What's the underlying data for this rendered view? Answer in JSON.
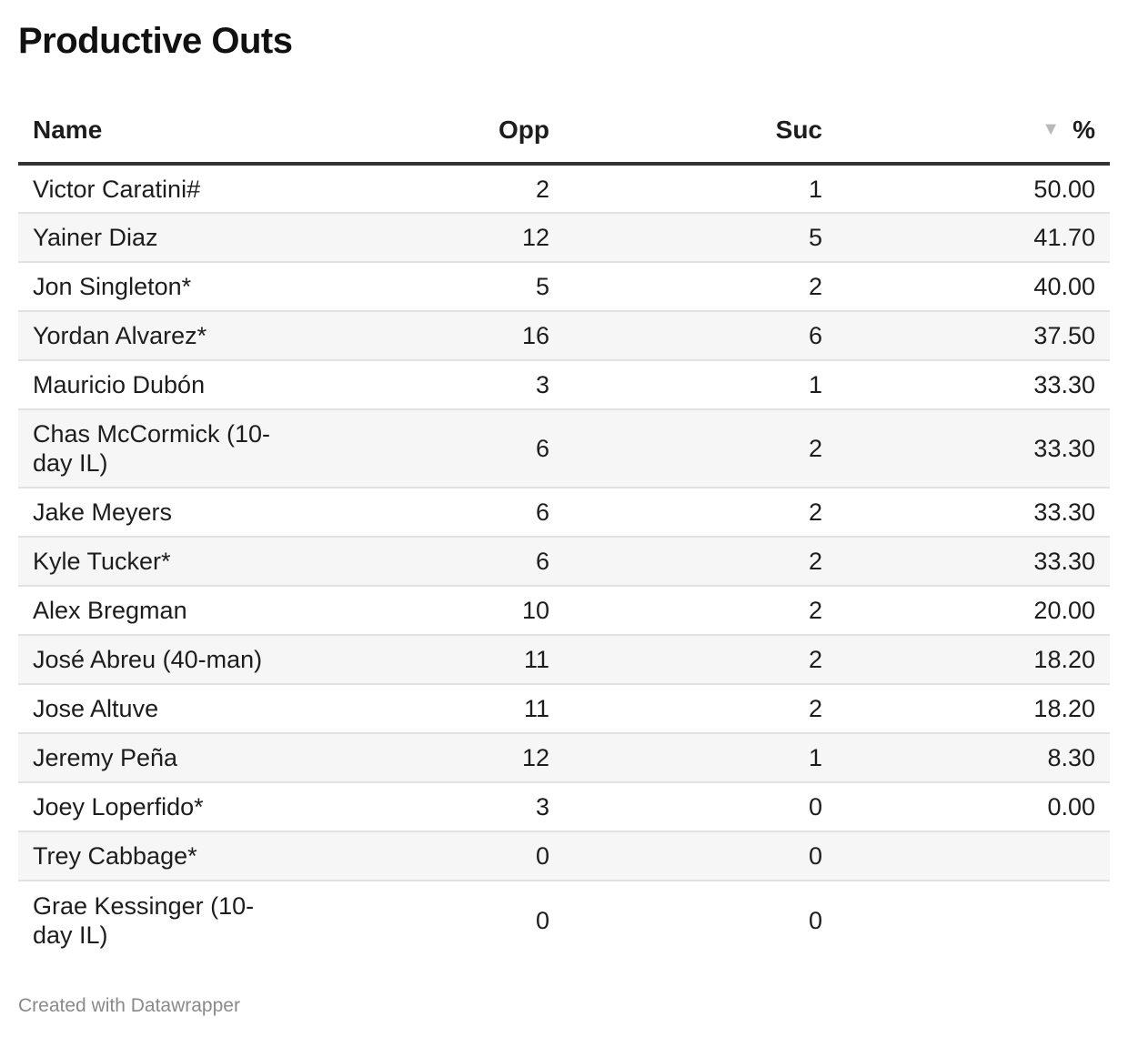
{
  "title": "Productive Outs",
  "footer": "Created with Datawrapper",
  "header": {
    "name": "Name",
    "opp": "Opp",
    "suc": "Suc",
    "pct": "%",
    "sort_icon": "▼"
  },
  "colors": {
    "header_rule": "#333333",
    "stripe": "#f6f6f6",
    "sort_icon": "#b8b8b8"
  },
  "chart_data": {
    "type": "table",
    "title": "Productive Outs",
    "columns": [
      "Name",
      "Opp",
      "Suc",
      "%"
    ],
    "sorted_by": "%",
    "sort_direction": "descending",
    "rows": [
      {
        "name": "Victor Caratini#",
        "opp": "2",
        "suc": "1",
        "pct": "50.00"
      },
      {
        "name": "Yainer Diaz",
        "opp": "12",
        "suc": "5",
        "pct": "41.70"
      },
      {
        "name": "Jon Singleton*",
        "opp": "5",
        "suc": "2",
        "pct": "40.00"
      },
      {
        "name": "Yordan Alvarez*",
        "opp": "16",
        "suc": "6",
        "pct": "37.50"
      },
      {
        "name": "Mauricio Dubón",
        "opp": "3",
        "suc": "1",
        "pct": "33.30"
      },
      {
        "name": "Chas McCormick (10-day IL)",
        "opp": "6",
        "suc": "2",
        "pct": "33.30"
      },
      {
        "name": "Jake Meyers",
        "opp": "6",
        "suc": "2",
        "pct": "33.30"
      },
      {
        "name": "Kyle Tucker*",
        "opp": "6",
        "suc": "2",
        "pct": "33.30"
      },
      {
        "name": "Alex Bregman",
        "opp": "10",
        "suc": "2",
        "pct": "20.00"
      },
      {
        "name": "José Abreu (40-man)",
        "opp": "11",
        "suc": "2",
        "pct": "18.20"
      },
      {
        "name": "Jose Altuve",
        "opp": "11",
        "suc": "2",
        "pct": "18.20"
      },
      {
        "name": "Jeremy Peña",
        "opp": "12",
        "suc": "1",
        "pct": "8.30"
      },
      {
        "name": "Joey Loperfido*",
        "opp": "3",
        "suc": "0",
        "pct": "0.00"
      },
      {
        "name": "Trey Cabbage*",
        "opp": "0",
        "suc": "0",
        "pct": ""
      },
      {
        "name": "Grae Kessinger (10-day IL)",
        "opp": "0",
        "suc": "0",
        "pct": ""
      }
    ]
  }
}
